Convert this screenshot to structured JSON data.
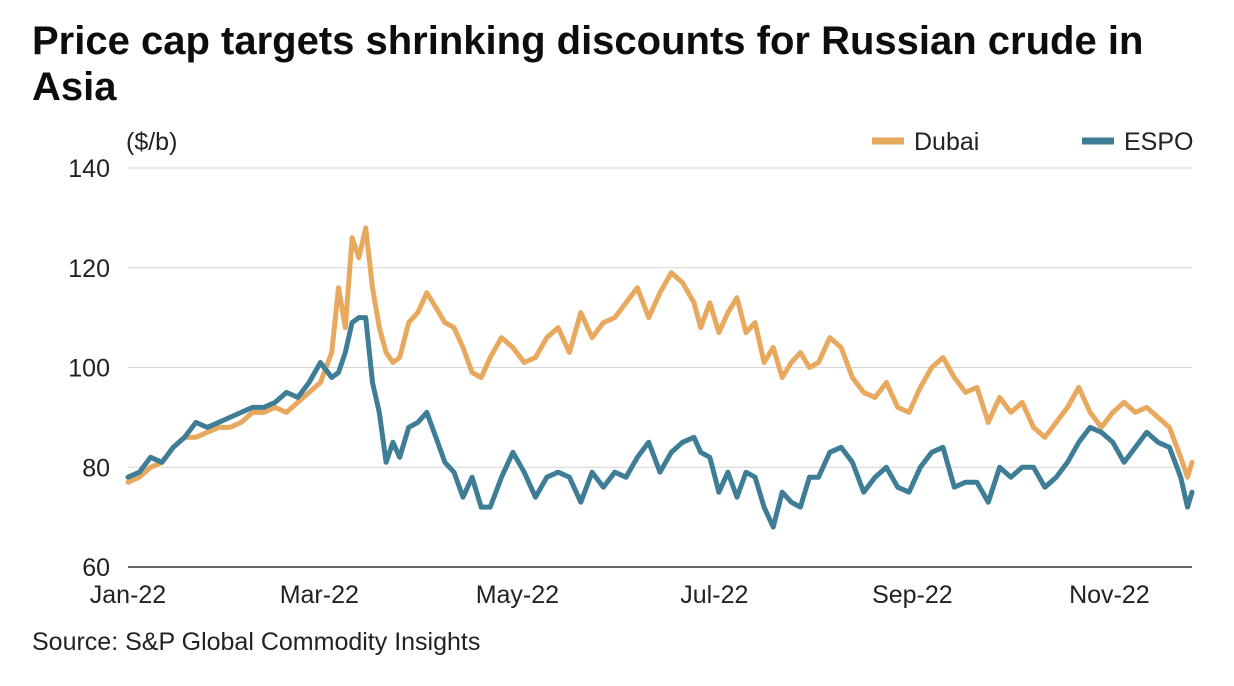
{
  "chart_data": {
    "type": "line",
    "title": "Price cap targets shrinking discounts for Russian crude in Asia",
    "ylabel": "($/b)",
    "xlabel": "",
    "ylim": [
      60,
      140
    ],
    "yticks": [
      60,
      80,
      100,
      120,
      140
    ],
    "xlim": [
      0,
      47
    ],
    "xticks": [
      {
        "pos": 0,
        "label": "Jan-22"
      },
      {
        "pos": 8.45,
        "label": "Mar-22"
      },
      {
        "pos": 17.2,
        "label": "May-22"
      },
      {
        "pos": 25.9,
        "label": "Jul-22"
      },
      {
        "pos": 34.65,
        "label": "Sep-22"
      },
      {
        "pos": 43.35,
        "label": "Nov-22"
      }
    ],
    "grid": true,
    "legend_position": "top-right",
    "series": [
      {
        "name": "Dubai",
        "color": "#e8a85d",
        "values": [
          [
            0,
            77
          ],
          [
            0.5,
            78
          ],
          [
            1,
            80
          ],
          [
            1.5,
            81
          ],
          [
            2,
            84
          ],
          [
            2.5,
            86
          ],
          [
            3,
            86
          ],
          [
            3.5,
            87
          ],
          [
            4,
            88
          ],
          [
            4.5,
            88
          ],
          [
            5,
            89
          ],
          [
            5.5,
            91
          ],
          [
            6,
            91
          ],
          [
            6.5,
            92
          ],
          [
            7,
            91
          ],
          [
            7.5,
            93
          ],
          [
            8,
            95
          ],
          [
            8.5,
            97
          ],
          [
            9,
            103
          ],
          [
            9.3,
            116
          ],
          [
            9.6,
            108
          ],
          [
            9.9,
            126
          ],
          [
            10.2,
            122
          ],
          [
            10.5,
            128
          ],
          [
            10.8,
            116
          ],
          [
            11.1,
            108
          ],
          [
            11.4,
            103
          ],
          [
            11.7,
            101
          ],
          [
            12,
            102
          ],
          [
            12.4,
            109
          ],
          [
            12.8,
            111
          ],
          [
            13.2,
            115
          ],
          [
            13.6,
            112
          ],
          [
            14,
            109
          ],
          [
            14.4,
            108
          ],
          [
            14.8,
            104
          ],
          [
            15.2,
            99
          ],
          [
            15.6,
            98
          ],
          [
            16,
            102
          ],
          [
            16.5,
            106
          ],
          [
            17,
            104
          ],
          [
            17.5,
            101
          ],
          [
            18,
            102
          ],
          [
            18.5,
            106
          ],
          [
            19,
            108
          ],
          [
            19.5,
            103
          ],
          [
            20,
            111
          ],
          [
            20.5,
            106
          ],
          [
            21,
            109
          ],
          [
            21.5,
            110
          ],
          [
            22,
            113
          ],
          [
            22.5,
            116
          ],
          [
            23,
            110
          ],
          [
            23.5,
            115
          ],
          [
            24,
            119
          ],
          [
            24.5,
            117
          ],
          [
            25,
            113
          ],
          [
            25.3,
            108
          ],
          [
            25.7,
            113
          ],
          [
            26.1,
            107
          ],
          [
            26.5,
            111
          ],
          [
            26.9,
            114
          ],
          [
            27.3,
            107
          ],
          [
            27.7,
            109
          ],
          [
            28.1,
            101
          ],
          [
            28.5,
            104
          ],
          [
            28.9,
            98
          ],
          [
            29.3,
            101
          ],
          [
            29.7,
            103
          ],
          [
            30.1,
            100
          ],
          [
            30.5,
            101
          ],
          [
            31,
            106
          ],
          [
            31.5,
            104
          ],
          [
            32,
            98
          ],
          [
            32.5,
            95
          ],
          [
            33,
            94
          ],
          [
            33.5,
            97
          ],
          [
            34,
            92
          ],
          [
            34.5,
            91
          ],
          [
            35,
            96
          ],
          [
            35.5,
            100
          ],
          [
            36,
            102
          ],
          [
            36.5,
            98
          ],
          [
            37,
            95
          ],
          [
            37.5,
            96
          ],
          [
            38,
            89
          ],
          [
            38.5,
            94
          ],
          [
            39,
            91
          ],
          [
            39.5,
            93
          ],
          [
            40,
            88
          ],
          [
            40.5,
            86
          ],
          [
            41,
            89
          ],
          [
            41.5,
            92
          ],
          [
            42,
            96
          ],
          [
            42.5,
            91
          ],
          [
            43,
            88
          ],
          [
            43.5,
            91
          ],
          [
            44,
            93
          ],
          [
            44.5,
            91
          ],
          [
            45,
            92
          ],
          [
            45.5,
            90
          ],
          [
            46,
            88
          ],
          [
            46.5,
            82
          ],
          [
            46.8,
            78
          ],
          [
            47,
            81
          ]
        ]
      },
      {
        "name": "ESPO",
        "color": "#3e7d96",
        "values": [
          [
            0,
            78
          ],
          [
            0.5,
            79
          ],
          [
            1,
            82
          ],
          [
            1.5,
            81
          ],
          [
            2,
            84
          ],
          [
            2.5,
            86
          ],
          [
            3,
            89
          ],
          [
            3.5,
            88
          ],
          [
            4,
            89
          ],
          [
            4.5,
            90
          ],
          [
            5,
            91
          ],
          [
            5.5,
            92
          ],
          [
            6,
            92
          ],
          [
            6.5,
            93
          ],
          [
            7,
            95
          ],
          [
            7.5,
            94
          ],
          [
            8,
            97
          ],
          [
            8.5,
            101
          ],
          [
            9,
            98
          ],
          [
            9.3,
            99
          ],
          [
            9.6,
            103
          ],
          [
            9.9,
            109
          ],
          [
            10.2,
            110
          ],
          [
            10.5,
            110
          ],
          [
            10.8,
            97
          ],
          [
            11.1,
            91
          ],
          [
            11.4,
            81
          ],
          [
            11.7,
            85
          ],
          [
            12,
            82
          ],
          [
            12.4,
            88
          ],
          [
            12.8,
            89
          ],
          [
            13.2,
            91
          ],
          [
            13.6,
            86
          ],
          [
            14,
            81
          ],
          [
            14.4,
            79
          ],
          [
            14.8,
            74
          ],
          [
            15.2,
            78
          ],
          [
            15.6,
            72
          ],
          [
            16,
            72
          ],
          [
            16.5,
            78
          ],
          [
            17,
            83
          ],
          [
            17.5,
            79
          ],
          [
            18,
            74
          ],
          [
            18.5,
            78
          ],
          [
            19,
            79
          ],
          [
            19.5,
            78
          ],
          [
            20,
            73
          ],
          [
            20.5,
            79
          ],
          [
            21,
            76
          ],
          [
            21.5,
            79
          ],
          [
            22,
            78
          ],
          [
            22.5,
            82
          ],
          [
            23,
            85
          ],
          [
            23.5,
            79
          ],
          [
            24,
            83
          ],
          [
            24.5,
            85
          ],
          [
            25,
            86
          ],
          [
            25.3,
            83
          ],
          [
            25.7,
            82
          ],
          [
            26.1,
            75
          ],
          [
            26.5,
            79
          ],
          [
            26.9,
            74
          ],
          [
            27.3,
            79
          ],
          [
            27.7,
            78
          ],
          [
            28.1,
            72
          ],
          [
            28.5,
            68
          ],
          [
            28.9,
            75
          ],
          [
            29.3,
            73
          ],
          [
            29.7,
            72
          ],
          [
            30.1,
            78
          ],
          [
            30.5,
            78
          ],
          [
            31,
            83
          ],
          [
            31.5,
            84
          ],
          [
            32,
            81
          ],
          [
            32.5,
            75
          ],
          [
            33,
            78
          ],
          [
            33.5,
            80
          ],
          [
            34,
            76
          ],
          [
            34.5,
            75
          ],
          [
            35,
            80
          ],
          [
            35.5,
            83
          ],
          [
            36,
            84
          ],
          [
            36.5,
            76
          ],
          [
            37,
            77
          ],
          [
            37.5,
            77
          ],
          [
            38,
            73
          ],
          [
            38.5,
            80
          ],
          [
            39,
            78
          ],
          [
            39.5,
            80
          ],
          [
            40,
            80
          ],
          [
            40.5,
            76
          ],
          [
            41,
            78
          ],
          [
            41.5,
            81
          ],
          [
            42,
            85
          ],
          [
            42.5,
            88
          ],
          [
            43,
            87
          ],
          [
            43.5,
            85
          ],
          [
            44,
            81
          ],
          [
            44.5,
            84
          ],
          [
            45,
            87
          ],
          [
            45.5,
            85
          ],
          [
            46,
            84
          ],
          [
            46.5,
            78
          ],
          [
            46.8,
            72
          ],
          [
            47,
            75
          ]
        ]
      }
    ],
    "source": "Source: S&P Global Commodity Insights"
  }
}
